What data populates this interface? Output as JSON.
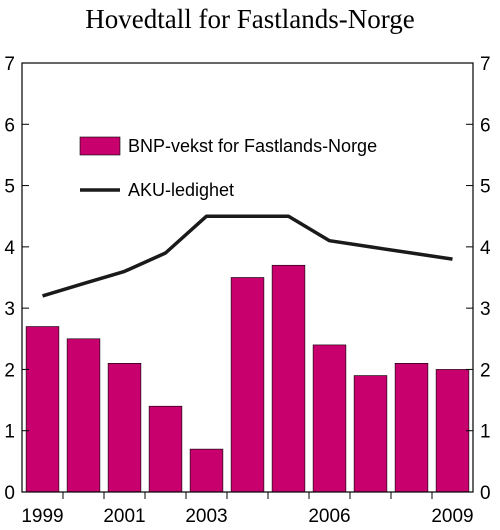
{
  "chart_data": {
    "type": "bar",
    "title": "Hovedtall for Fastlands-Norge",
    "xlabel": "",
    "ylabel": "",
    "ylim": [
      0,
      7
    ],
    "yticks": [
      0,
      1,
      2,
      3,
      4,
      5,
      6,
      7
    ],
    "categories": [
      "1999",
      "2000",
      "2001",
      "2002",
      "2003",
      "2004",
      "2005",
      "2006",
      "2007",
      "2008",
      "2009"
    ],
    "x_tick_labels": [
      "1999",
      "2001",
      "2003",
      "2006",
      "2009"
    ],
    "series": [
      {
        "name": "BNP-vekst for Fastlands-Norge",
        "type": "bar",
        "color": "#c8006e",
        "values": [
          2.7,
          2.5,
          2.1,
          1.4,
          0.7,
          3.5,
          3.7,
          2.4,
          1.9,
          2.1,
          2.0
        ]
      },
      {
        "name": "AKU-ledighet",
        "type": "line",
        "color": "#1a1a1a",
        "values": [
          3.2,
          3.4,
          3.6,
          3.9,
          4.5,
          4.5,
          4.5,
          4.1,
          4.0,
          3.9,
          3.8
        ]
      }
    ],
    "legend": "top-left",
    "grid": false
  }
}
